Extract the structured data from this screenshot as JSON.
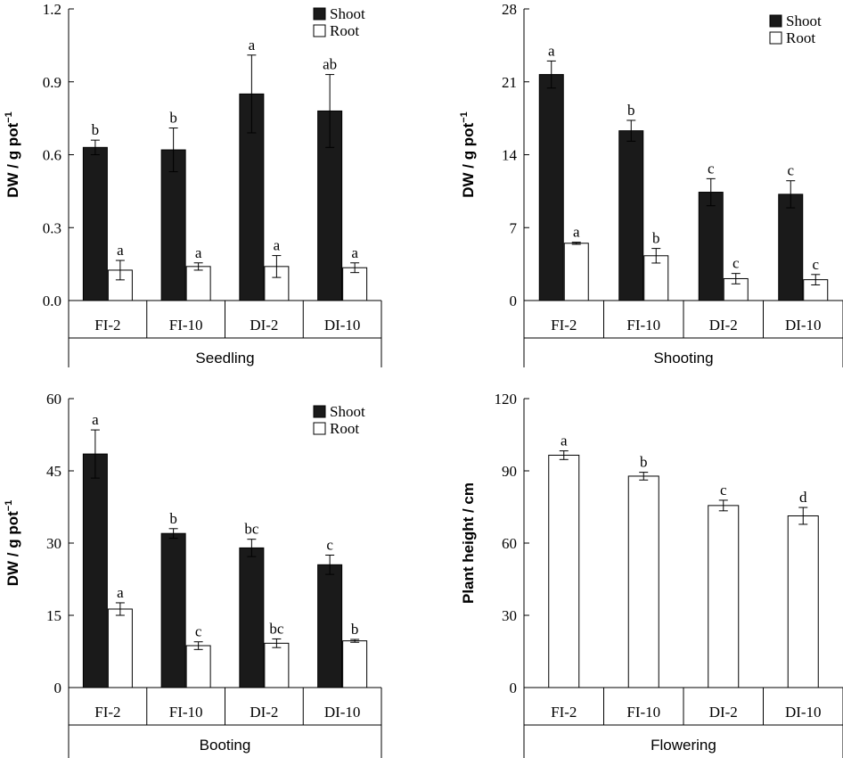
{
  "chart_data": [
    {
      "type": "bar",
      "categories": [
        "FI-2",
        "FI-10",
        "DI-2",
        "DI-10"
      ],
      "group_label": "Seedling",
      "ylabel_text": "DW / g pot",
      "ylabel_sup": "−1",
      "ylim": [
        0,
        1.2
      ],
      "yticks": [
        "0.0",
        "0.3",
        "0.6",
        "0.9",
        "1.2"
      ],
      "legend_position": "top-right",
      "series": [
        {
          "name": "Shoot",
          "color": "#1a1a1a",
          "values": [
            0.63,
            0.62,
            0.85,
            0.78
          ],
          "errors": [
            0.03,
            0.09,
            0.16,
            0.15
          ],
          "letters": [
            "b",
            "b",
            "a",
            "ab"
          ]
        },
        {
          "name": "Root",
          "color": "#ffffff",
          "values": [
            0.125,
            0.14,
            0.14,
            0.135
          ],
          "errors": [
            0.04,
            0.015,
            0.045,
            0.02
          ],
          "letters": [
            "a",
            "a",
            "a",
            "a"
          ]
        }
      ]
    },
    {
      "type": "bar",
      "categories": [
        "FI-2",
        "FI-10",
        "DI-2",
        "DI-10"
      ],
      "group_label": "Shooting",
      "ylabel_text": "DW / g pot",
      "ylabel_sup": "−1",
      "ylim": [
        0,
        28
      ],
      "yticks": [
        "0",
        "7",
        "14",
        "21",
        "28"
      ],
      "legend_position": "top-right",
      "series": [
        {
          "name": "Shoot",
          "color": "#1a1a1a",
          "values": [
            21.7,
            16.3,
            10.4,
            10.2
          ],
          "errors": [
            1.3,
            1.0,
            1.3,
            1.3
          ],
          "letters": [
            "a",
            "b",
            "c",
            "c"
          ]
        },
        {
          "name": "Root",
          "color": "#ffffff",
          "values": [
            5.5,
            4.3,
            2.1,
            2.0
          ],
          "errors": [
            0.1,
            0.7,
            0.5,
            0.5
          ],
          "letters": [
            "a",
            "b",
            "c",
            "c"
          ]
        }
      ]
    },
    {
      "type": "bar",
      "categories": [
        "FI-2",
        "FI-10",
        "DI-2",
        "DI-10"
      ],
      "group_label": "Booting",
      "ylabel_text": "DW / g pot",
      "ylabel_sup": "−1",
      "ylim": [
        0,
        60
      ],
      "yticks": [
        "0",
        "15",
        "30",
        "45",
        "60"
      ],
      "legend_position": "top-right",
      "series": [
        {
          "name": "Shoot",
          "color": "#1a1a1a",
          "values": [
            48.5,
            32.0,
            29.0,
            25.5
          ],
          "errors": [
            5.0,
            1.0,
            1.8,
            2.0
          ],
          "letters": [
            "a",
            "b",
            "bc",
            "c"
          ]
        },
        {
          "name": "Root",
          "color": "#ffffff",
          "values": [
            16.3,
            8.7,
            9.2,
            9.7
          ],
          "errors": [
            1.3,
            0.8,
            0.9,
            0.3
          ],
          "letters": [
            "a",
            "c",
            "bc",
            "b"
          ]
        }
      ]
    },
    {
      "type": "bar",
      "categories": [
        "FI-2",
        "FI-10",
        "DI-2",
        "DI-10"
      ],
      "group_label": "Flowering",
      "ylabel_text": "Plant height / cm",
      "ylabel_sup": "",
      "ylim": [
        0,
        120
      ],
      "yticks": [
        "0",
        "30",
        "60",
        "90",
        "120"
      ],
      "legend_position": "none",
      "series": [
        {
          "name": "",
          "color": "#ffffff",
          "values": [
            96.5,
            87.8,
            75.6,
            71.3
          ],
          "errors": [
            1.8,
            1.6,
            2.2,
            3.5
          ],
          "letters": [
            "a",
            "b",
            "c",
            "d"
          ]
        }
      ]
    }
  ]
}
